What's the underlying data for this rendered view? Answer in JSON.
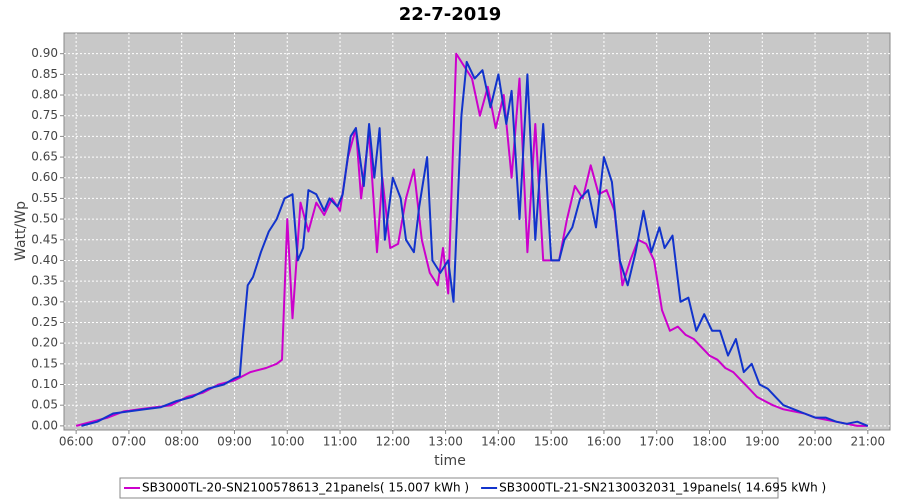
{
  "chart_data": {
    "type": "line",
    "title": "22-7-2019",
    "x_label": "time",
    "y_label": "Watt/Wp",
    "xlim": [
      5.77,
      21.42
    ],
    "ylim": [
      -0.01,
      0.95
    ],
    "xticks": [
      {
        "value": 6,
        "label": "06:00"
      },
      {
        "value": 7,
        "label": "07:00"
      },
      {
        "value": 8,
        "label": "08:00"
      },
      {
        "value": 9,
        "label": "09:00"
      },
      {
        "value": 10,
        "label": "10:00"
      },
      {
        "value": 11,
        "label": "11:00"
      },
      {
        "value": 12,
        "label": "12:00"
      },
      {
        "value": 13,
        "label": "13:00"
      },
      {
        "value": 14,
        "label": "14:00"
      },
      {
        "value": 15,
        "label": "15:00"
      },
      {
        "value": 16,
        "label": "16:00"
      },
      {
        "value": 17,
        "label": "17:00"
      },
      {
        "value": 18,
        "label": "18:00"
      },
      {
        "value": 19,
        "label": "19:00"
      },
      {
        "value": 20,
        "label": "20:00"
      },
      {
        "value": 21,
        "label": "21:00"
      }
    ],
    "yticks": [
      {
        "value": 0,
        "label": "0.00"
      },
      0.05,
      {
        "value": 0.1,
        "label": "0.10"
      },
      0.15,
      {
        "value": 0.2,
        "label": "0.20"
      },
      0.25,
      {
        "value": 0.3,
        "label": "0.30"
      },
      0.35,
      {
        "value": 0.4,
        "label": "0.40"
      },
      0.45,
      {
        "value": 0.5,
        "label": "0.50"
      },
      0.55,
      {
        "value": 0.6,
        "label": "0.60"
      },
      0.65,
      {
        "value": 0.7,
        "label": "0.70"
      },
      0.75,
      {
        "value": 0.8,
        "label": "0.80"
      },
      0.85,
      {
        "value": 0.9,
        "label": "0.90"
      }
    ],
    "grid": true,
    "legend": "bottom",
    "series": [
      {
        "name": "SB3000TL-20-SN2100578613_21panels( 15.007 kWh )",
        "color": "#cc00cc",
        "x": [
          6.0,
          6.3,
          6.6,
          6.9,
          7.2,
          7.5,
          7.8,
          8.1,
          8.4,
          8.7,
          9.0,
          9.3,
          9.6,
          9.8,
          9.9,
          10.0,
          10.1,
          10.25,
          10.4,
          10.55,
          10.7,
          10.85,
          11.0,
          11.15,
          11.3,
          11.4,
          11.55,
          11.7,
          11.8,
          11.95,
          12.1,
          12.25,
          12.4,
          12.55,
          12.7,
          12.85,
          12.95,
          13.05,
          13.2,
          13.35,
          13.5,
          13.65,
          13.8,
          13.95,
          14.1,
          14.25,
          14.4,
          14.55,
          14.7,
          14.85,
          15.0,
          15.15,
          15.3,
          15.45,
          15.6,
          15.75,
          15.9,
          16.05,
          16.2,
          16.35,
          16.5,
          16.65,
          16.8,
          16.95,
          17.1,
          17.25,
          17.4,
          17.55,
          17.7,
          17.85,
          18.0,
          18.15,
          18.3,
          18.45,
          18.6,
          18.75,
          18.9,
          19.05,
          19.2,
          19.4,
          19.6,
          19.8,
          20.0,
          20.2,
          20.4,
          20.6,
          20.8,
          21.0
        ],
        "values": [
          0,
          0.01,
          0.02,
          0.035,
          0.04,
          0.045,
          0.05,
          0.07,
          0.08,
          0.1,
          0.11,
          0.13,
          0.14,
          0.15,
          0.16,
          0.5,
          0.26,
          0.54,
          0.47,
          0.54,
          0.51,
          0.55,
          0.52,
          0.65,
          0.72,
          0.55,
          0.71,
          0.42,
          0.6,
          0.43,
          0.44,
          0.55,
          0.62,
          0.45,
          0.37,
          0.34,
          0.43,
          0.32,
          0.9,
          0.87,
          0.84,
          0.75,
          0.82,
          0.72,
          0.8,
          0.6,
          0.84,
          0.42,
          0.73,
          0.4,
          0.4,
          0.4,
          0.5,
          0.58,
          0.55,
          0.63,
          0.56,
          0.57,
          0.52,
          0.34,
          0.4,
          0.45,
          0.44,
          0.4,
          0.28,
          0.23,
          0.24,
          0.22,
          0.21,
          0.19,
          0.17,
          0.16,
          0.14,
          0.13,
          0.11,
          0.09,
          0.07,
          0.06,
          0.05,
          0.04,
          0.035,
          0.03,
          0.02,
          0.015,
          0.01,
          0.005,
          0,
          0
        ]
      },
      {
        "name": "SB3000TL-21-SN2130032031_19panels( 14.695 kWh )",
        "color": "#1133cc",
        "x": [
          6.1,
          6.4,
          6.7,
          7.0,
          7.3,
          7.6,
          7.9,
          8.2,
          8.5,
          8.8,
          9.0,
          9.1,
          9.15,
          9.25,
          9.35,
          9.5,
          9.65,
          9.8,
          9.95,
          10.1,
          10.2,
          10.3,
          10.4,
          10.55,
          10.7,
          10.8,
          10.95,
          11.05,
          11.2,
          11.3,
          11.45,
          11.55,
          11.65,
          11.75,
          11.85,
          12.0,
          12.15,
          12.25,
          12.4,
          12.5,
          12.65,
          12.75,
          12.9,
          13.05,
          13.15,
          13.3,
          13.4,
          13.55,
          13.7,
          13.85,
          14.0,
          14.15,
          14.25,
          14.4,
          14.55,
          14.7,
          14.85,
          15.0,
          15.15,
          15.25,
          15.4,
          15.55,
          15.7,
          15.85,
          16.0,
          16.15,
          16.3,
          16.45,
          16.6,
          16.75,
          16.9,
          17.05,
          17.15,
          17.3,
          17.45,
          17.6,
          17.75,
          17.9,
          18.05,
          18.2,
          18.35,
          18.5,
          18.65,
          18.8,
          18.95,
          19.1,
          19.25,
          19.4,
          19.6,
          19.8,
          20.0,
          20.2,
          20.4,
          20.6,
          20.8,
          21.0
        ],
        "values": [
          0,
          0.01,
          0.03,
          0.035,
          0.04,
          0.045,
          0.06,
          0.07,
          0.09,
          0.1,
          0.115,
          0.12,
          0.2,
          0.34,
          0.36,
          0.42,
          0.47,
          0.5,
          0.55,
          0.56,
          0.4,
          0.43,
          0.57,
          0.56,
          0.52,
          0.55,
          0.53,
          0.56,
          0.7,
          0.72,
          0.58,
          0.73,
          0.6,
          0.72,
          0.45,
          0.6,
          0.55,
          0.45,
          0.42,
          0.53,
          0.65,
          0.4,
          0.37,
          0.4,
          0.3,
          0.75,
          0.88,
          0.84,
          0.86,
          0.77,
          0.85,
          0.73,
          0.81,
          0.5,
          0.85,
          0.45,
          0.73,
          0.4,
          0.4,
          0.45,
          0.48,
          0.55,
          0.57,
          0.48,
          0.65,
          0.59,
          0.4,
          0.34,
          0.42,
          0.52,
          0.42,
          0.48,
          0.43,
          0.46,
          0.3,
          0.31,
          0.23,
          0.27,
          0.23,
          0.23,
          0.17,
          0.21,
          0.13,
          0.15,
          0.1,
          0.09,
          0.07,
          0.05,
          0.04,
          0.03,
          0.02,
          0.02,
          0.01,
          0.005,
          0.01,
          0
        ]
      }
    ]
  }
}
